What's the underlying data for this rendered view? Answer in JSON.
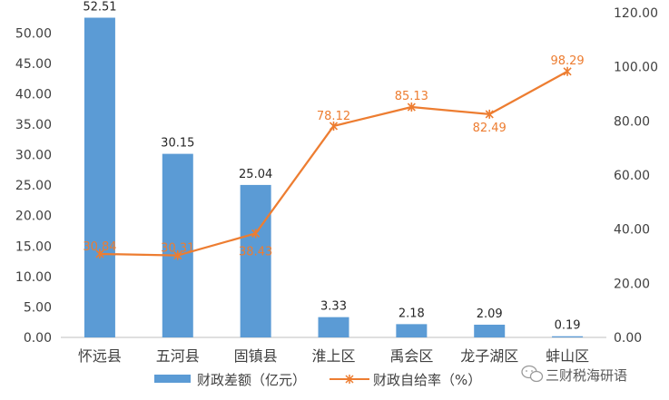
{
  "chart_data": {
    "type": "bar",
    "categories": [
      "怀远县",
      "五河县",
      "固镇县",
      "淮上区",
      "禹会区",
      "龙子湖区",
      "蚌山区"
    ],
    "series": [
      {
        "name": "财政差额（亿元）",
        "type": "bar",
        "axis": "left",
        "values": [
          52.51,
          30.15,
          25.04,
          3.33,
          2.18,
          2.09,
          0.19
        ],
        "color": "#5b9bd5"
      },
      {
        "name": "财政自给率（%）",
        "type": "line",
        "axis": "right",
        "values": [
          30.84,
          30.31,
          38.43,
          78.12,
          85.13,
          82.49,
          98.29
        ],
        "color": "#ed7d31"
      }
    ],
    "left_axis": {
      "ylim": [
        0,
        53.33
      ],
      "ticks": [
        "0.00",
        "5.00",
        "10.00",
        "15.00",
        "20.00",
        "25.00",
        "30.00",
        "35.00",
        "40.00",
        "45.00",
        "50.00"
      ]
    },
    "right_axis": {
      "ylim": [
        0,
        120
      ],
      "ticks": [
        "0.00",
        "20.00",
        "40.00",
        "60.00",
        "80.00",
        "100.00",
        "120.00"
      ]
    },
    "bar_labels": [
      "52.51",
      "30.15",
      "25.04",
      "3.33",
      "2.18",
      "2.09",
      "0.19"
    ],
    "line_labels": [
      "30.84",
      "30.31",
      "38.43",
      "78.12",
      "85.13",
      "82.49",
      "98.29"
    ],
    "grid": false,
    "legend_position": "bottom"
  },
  "watermark": {
    "text": "三财税海研语"
  }
}
